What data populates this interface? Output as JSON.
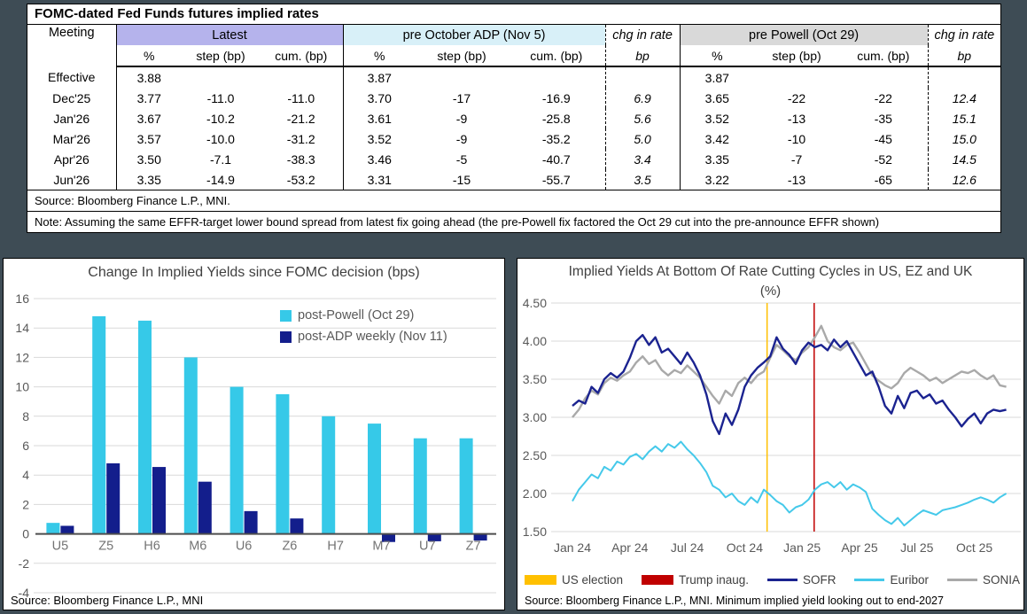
{
  "theme": {
    "background": "#3E4C55",
    "grid_color": "#D9D9D9",
    "axis_text_color": "#595959"
  },
  "table": {
    "title": "FOMC-dated Fed Funds futures implied rates",
    "col_meeting": "Meeting",
    "groups": [
      {
        "label": "Latest",
        "bg": "#B5B3EC"
      },
      {
        "label": "pre October ADP (Nov 5)",
        "bg": "#D8F0F8"
      },
      {
        "label": "chg in rate"
      },
      {
        "label": "pre Powell (Oct 29)",
        "bg": "#D9D9D9"
      },
      {
        "label": "chg in rate"
      }
    ],
    "subheads": [
      "%",
      "step (bp)",
      "cum. (bp)",
      "%",
      "step (bp)",
      "cum. (bp)",
      "bp",
      "%",
      "step (bp)",
      "cum. (bp)",
      "bp"
    ],
    "rows": [
      [
        "Effective",
        "3.88",
        "",
        "",
        "3.87",
        "",
        "",
        "",
        "3.87",
        "",
        "",
        ""
      ],
      [
        "Dec'25",
        "3.77",
        "-11.0",
        "-11.0",
        "3.70",
        "-17",
        "-16.9",
        "6.9",
        "3.65",
        "-22",
        "-22",
        "12.4"
      ],
      [
        "Jan'26",
        "3.67",
        "-10.2",
        "-21.2",
        "3.61",
        "-9",
        "-25.8",
        "5.6",
        "3.52",
        "-13",
        "-35",
        "15.1"
      ],
      [
        "Mar'26",
        "3.57",
        "-10.0",
        "-31.2",
        "3.52",
        "-9",
        "-35.2",
        "5.0",
        "3.42",
        "-10",
        "-45",
        "15.0"
      ],
      [
        "Apr'26",
        "3.50",
        "-7.1",
        "-38.3",
        "3.46",
        "-5",
        "-40.7",
        "3.4",
        "3.35",
        "-7",
        "-52",
        "14.5"
      ],
      [
        "Jun'26",
        "3.35",
        "-14.9",
        "-53.2",
        "3.31",
        "-15",
        "-55.7",
        "3.5",
        "3.22",
        "-13",
        "-65",
        "12.6"
      ]
    ],
    "source": "Source: Bloomberg Finance L.P., MNI.",
    "note": "Note: Assuming the same EFFR-target lower bound spread from latest fix going ahead (the pre-Powell fix factored the Oct 29 cut into the pre-announce EFFR shown)"
  },
  "chart_data": [
    {
      "type": "bar",
      "title": "Change In Implied Yields since FOMC decision (bps)",
      "categories": [
        "U5",
        "Z5",
        "H6",
        "M6",
        "U6",
        "Z6",
        "H7",
        "M7",
        "U7",
        "Z7"
      ],
      "series": [
        {
          "name": "post-Powell (Oct 29)",
          "color": "#36C9E8",
          "values": [
            0.75,
            14.8,
            14.5,
            12.0,
            10.0,
            9.5,
            8.0,
            7.5,
            6.5,
            6.5
          ]
        },
        {
          "name": "post-ADP weekly (Nov 11)",
          "color": "#131E8C",
          "values": [
            0.55,
            4.8,
            4.55,
            3.55,
            1.55,
            1.05,
            0,
            -0.55,
            -0.5,
            -0.45
          ]
        }
      ],
      "ylim": [
        -4,
        16
      ],
      "ytick_step": 2,
      "grid": true,
      "legend_position": "top-right",
      "source": "Source: Bloomberg Finance L.P., MNI"
    },
    {
      "type": "line",
      "title": "Implied Yields At Bottom Of Rate Cutting Cycles in US, EZ and UK",
      "subtitle": "(%)",
      "x_start_month": 0,
      "x_step_months": 0.3333,
      "x_axis_note": "months since Jan 2024",
      "xtick_months": [
        0,
        3,
        6,
        9,
        12,
        15,
        18,
        21
      ],
      "xtick_labels": [
        "Jan 24",
        "Apr 24",
        "Jul 24",
        "Oct 24",
        "Jan 25",
        "Apr 25",
        "Jul 25",
        "Oct 25"
      ],
      "ylim": [
        1.5,
        4.5
      ],
      "ytick_step": 0.5,
      "vlines": [
        {
          "label": "US election",
          "month": 10.17,
          "color": "#FFC000"
        },
        {
          "label": "Trump inaug.",
          "month": 12.63,
          "color": "#C00000"
        }
      ],
      "series": [
        {
          "name": "SOFR",
          "color": "#1B2390",
          "width": 2.4,
          "values": [
            3.15,
            3.22,
            3.18,
            3.4,
            3.32,
            3.5,
            3.58,
            3.52,
            3.6,
            3.78,
            4.0,
            4.08,
            3.95,
            4.05,
            3.85,
            3.9,
            3.8,
            3.7,
            3.85,
            3.72,
            3.55,
            3.3,
            2.95,
            2.78,
            3.05,
            2.9,
            3.1,
            3.4,
            3.55,
            3.65,
            3.72,
            3.8,
            4.05,
            3.9,
            3.82,
            3.7,
            3.88,
            3.98,
            3.92,
            3.95,
            3.88,
            4.02,
            3.92,
            4.0,
            3.85,
            3.7,
            3.55,
            3.6,
            3.4,
            3.15,
            3.05,
            3.28,
            3.12,
            3.32,
            3.35,
            3.25,
            3.3,
            3.18,
            3.22,
            3.1,
            3.0,
            2.88,
            2.98,
            3.05,
            2.92,
            3.05,
            3.1,
            3.08,
            3.1
          ]
        },
        {
          "name": "Euribor",
          "color": "#45C9EA",
          "width": 2.0,
          "values": [
            1.9,
            2.05,
            2.15,
            2.25,
            2.2,
            2.35,
            2.3,
            2.42,
            2.38,
            2.48,
            2.52,
            2.45,
            2.55,
            2.62,
            2.55,
            2.65,
            2.6,
            2.68,
            2.58,
            2.5,
            2.4,
            2.28,
            2.1,
            2.05,
            1.95,
            2.0,
            1.9,
            1.85,
            1.95,
            1.88,
            2.05,
            1.98,
            1.9,
            1.85,
            1.75,
            1.82,
            1.85,
            1.92,
            2.05,
            2.12,
            2.15,
            2.08,
            2.15,
            2.05,
            2.12,
            2.08,
            2.02,
            1.8,
            1.72,
            1.65,
            1.6,
            1.68,
            1.58,
            1.65,
            1.72,
            1.78,
            1.75,
            1.72,
            1.78,
            1.8,
            1.82,
            1.85,
            1.88,
            1.92,
            1.95,
            1.92,
            1.88,
            1.95,
            2.0
          ]
        },
        {
          "name": "SONIA",
          "color": "#A9A9A9",
          "width": 2.4,
          "values": [
            3.0,
            3.1,
            3.25,
            3.35,
            3.3,
            3.45,
            3.52,
            3.48,
            3.55,
            3.6,
            3.72,
            3.8,
            3.7,
            3.75,
            3.62,
            3.55,
            3.62,
            3.58,
            3.68,
            3.6,
            3.52,
            3.4,
            3.28,
            3.18,
            3.35,
            3.28,
            3.45,
            3.52,
            3.45,
            3.55,
            3.6,
            3.78,
            3.95,
            3.88,
            3.8,
            3.75,
            3.85,
            3.92,
            4.05,
            4.2,
            4.0,
            3.92,
            3.88,
            3.95,
            3.98,
            3.85,
            3.7,
            3.55,
            3.48,
            3.42,
            3.38,
            3.45,
            3.58,
            3.65,
            3.6,
            3.55,
            3.48,
            3.52,
            3.45,
            3.5,
            3.55,
            3.6,
            3.58,
            3.62,
            3.55,
            3.5,
            3.55,
            3.42,
            3.4
          ]
        }
      ],
      "grid": true,
      "legend_position": "bottom",
      "source": "Source: Bloomberg Finance L.P., MNI. Minimum implied yield looking out to end-2027"
    }
  ]
}
